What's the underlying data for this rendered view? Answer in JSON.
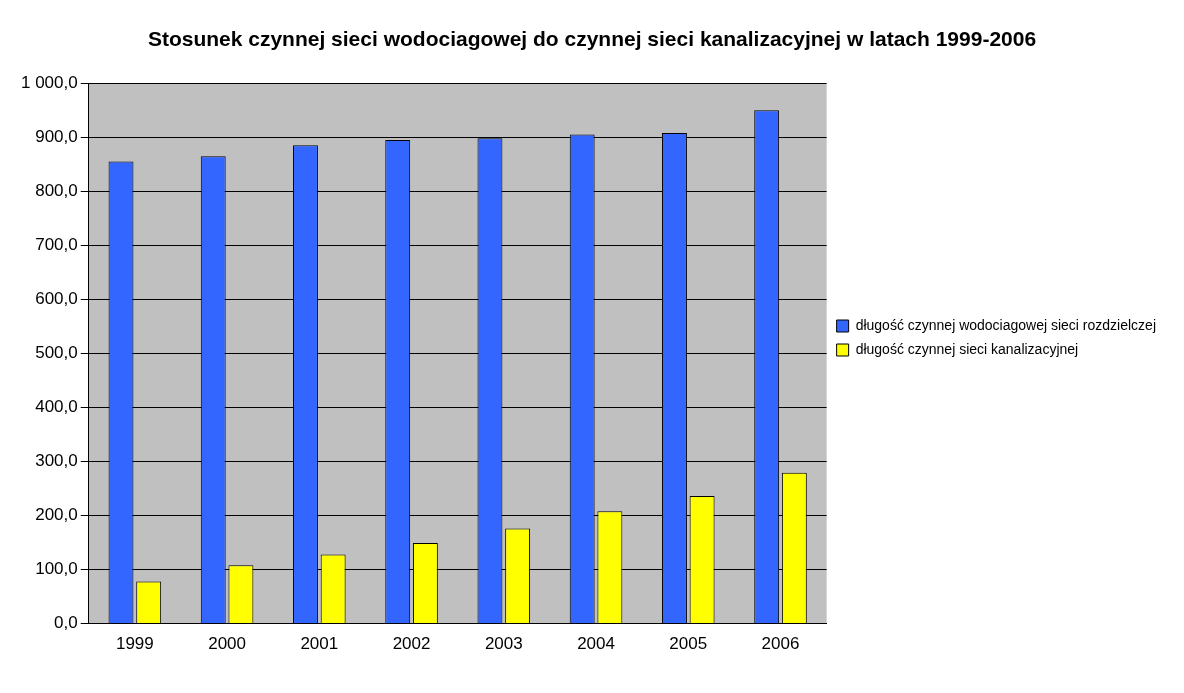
{
  "chart_data": {
    "type": "bar",
    "title": "Stosunek czynnej sieci wodociagowej do czynnej sieci kanalizacyjnej w latach 1999-2006",
    "categories": [
      "1999",
      "2000",
      "2001",
      "2002",
      "2003",
      "2004",
      "2005",
      "2006"
    ],
    "series": [
      {
        "name": "długość czynnej wodociagowej sieci rozdzielczej",
        "color": "#3366ff",
        "values": [
          855,
          865,
          885,
          895,
          898,
          905,
          908,
          950
        ]
      },
      {
        "name": "długość czynnej sieci kanalizacyjnej",
        "color": "#ffff00",
        "values": [
          78,
          108,
          128,
          149,
          176,
          208,
          236,
          279
        ]
      }
    ],
    "ylim": [
      0,
      1000
    ],
    "yticks": [
      {
        "value": 0,
        "label": "0,0"
      },
      {
        "value": 100,
        "label": "100,0"
      },
      {
        "value": 200,
        "label": "200,0"
      },
      {
        "value": 300,
        "label": "300,0"
      },
      {
        "value": 400,
        "label": "400,0"
      },
      {
        "value": 500,
        "label": "500,0"
      },
      {
        "value": 600,
        "label": "600,0"
      },
      {
        "value": 700,
        "label": "700,0"
      },
      {
        "value": 800,
        "label": "800,0"
      },
      {
        "value": 900,
        "label": "900,0"
      },
      {
        "value": 1000,
        "label": "1 000,0"
      }
    ],
    "grid": "y",
    "legend": "right"
  }
}
